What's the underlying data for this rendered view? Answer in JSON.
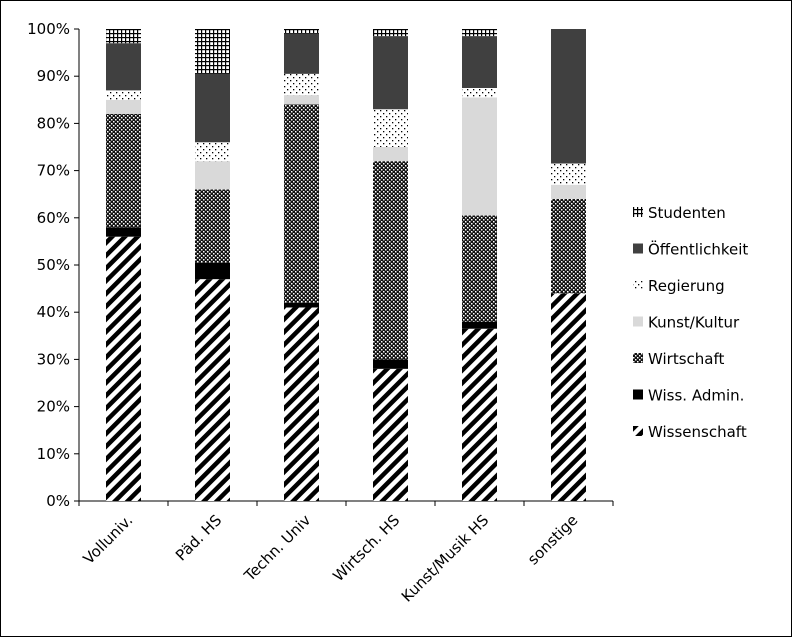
{
  "chart_data": {
    "type": "bar",
    "stacked": true,
    "normalized": true,
    "title": "",
    "xlabel": "",
    "ylabel": "",
    "ylim": [
      0,
      100
    ],
    "yticks": [
      "0%",
      "10%",
      "20%",
      "30%",
      "40%",
      "50%",
      "60%",
      "70%",
      "80%",
      "90%",
      "100%"
    ],
    "grid": false,
    "legend_position": "right",
    "categories": [
      "Volluniv.",
      "Päd. HS",
      "Techn. Univ",
      "Wirtsch. HS",
      "Kunst/Musik HS",
      "sonstige"
    ],
    "series": [
      {
        "name": "Wissenschaft",
        "pattern": "diagonal-stripes",
        "values": [
          56,
          47,
          41,
          28,
          36.5,
          44
        ]
      },
      {
        "name": "Wiss. Admin.",
        "pattern": "solid-black",
        "values": [
          2,
          3.5,
          1,
          2,
          1.5,
          0
        ]
      },
      {
        "name": "Wirtschaft",
        "pattern": "dense-checker",
        "values": [
          24,
          15.5,
          42,
          42,
          22.5,
          20
        ]
      },
      {
        "name": "Kunst/Kultur",
        "pattern": "light-gray",
        "values": [
          3,
          6,
          2,
          3,
          25,
          3
        ]
      },
      {
        "name": "Regierung",
        "pattern": "dotted-white",
        "values": [
          2,
          4,
          4.5,
          8,
          2,
          4.5
        ]
      },
      {
        "name": "Öffentlichkeit",
        "pattern": "dark-gray",
        "values": [
          10,
          14.5,
          8.5,
          15.5,
          11,
          28.5
        ]
      },
      {
        "name": "Studenten",
        "pattern": "grid-cross",
        "values": [
          3,
          9.5,
          1,
          1.5,
          1.5,
          0
        ]
      }
    ]
  }
}
